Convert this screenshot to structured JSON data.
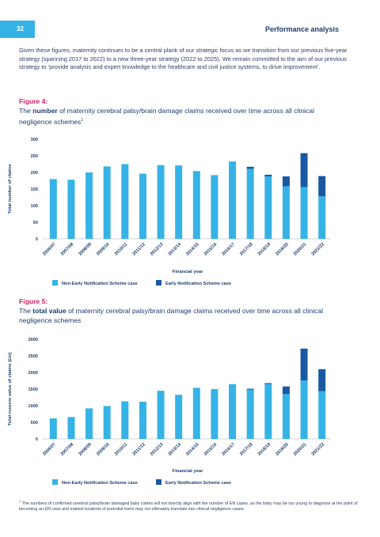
{
  "header": {
    "page_number": "32",
    "section_title": "Performance analysis"
  },
  "intro_text": "Given these figures, maternity continues to be a central plank of our strategic focus as we transition from our previous five-year strategy (spanning 2017 to 2022) to a new three-year strategy (2022 to 2025). We remain committed to the aim of our previous strategy to ‘provide analysis and expert knowledge to the healthcare and civil justice systems, to drive improvement’.",
  "figure4": {
    "label": "Figure 4:",
    "title_pre": "The ",
    "title_bold": "number",
    "title_post": " of maternity cerebral palsy/brain damage claims received over time across all clinical negligence schemes",
    "title_sup": "1"
  },
  "figure5": {
    "label": "Figure 5:",
    "title_pre": "The ",
    "title_bold": "total value",
    "title_post": " of maternity cerebral palsy/brain damage claims received over time across all clinical negligence schemes"
  },
  "footnote": {
    "marker": "1",
    "text": "The numbers of confirmed cerebral palsy/brain damaged baby claims will not directly align with the number of EN cases, as the baby may be too young to diagnose at the point of becoming an EN case and indeed incidents of potential harm may not ultimately translate into clinical negligence cases."
  },
  "colors": {
    "non_en": "#35b3e6",
    "en": "#1b58a3",
    "accent": "#d91d63",
    "navy": "#1d3c6e"
  },
  "chart_data": [
    {
      "type": "bar",
      "stacked": true,
      "categories": [
        "2006/07",
        "2007/08",
        "2008/09",
        "2009/10",
        "2010/11",
        "2011/12",
        "2012/13",
        "2013/14",
        "2014/15",
        "2015/16",
        "2016/17",
        "2017/18",
        "2018/19",
        "2019/20",
        "2020/21",
        "2021/22"
      ],
      "series": [
        {
          "name": "Non-Early Notification Scheme case",
          "values": [
            180,
            178,
            200,
            218,
            225,
            196,
            222,
            221,
            204,
            192,
            233,
            211,
            188,
            158,
            156,
            128
          ]
        },
        {
          "name": "Early Notification Scheme case",
          "values": [
            0,
            0,
            0,
            0,
            0,
            0,
            0,
            0,
            0,
            0,
            0,
            6,
            5,
            30,
            102,
            61
          ]
        }
      ],
      "xlabel": "Financial year",
      "ylabel": "Total number of claims",
      "ylim": [
        0,
        300
      ],
      "yticks": [
        0,
        50,
        100,
        150,
        200,
        250,
        300
      ],
      "grid": false,
      "legend": "bottom"
    },
    {
      "type": "bar",
      "stacked": true,
      "categories": [
        "2006/07",
        "2007/08",
        "2008/09",
        "2009/10",
        "2010/11",
        "2011/12",
        "2012/13",
        "2013/14",
        "2014/15",
        "2015/16",
        "2016/17",
        "2017/18",
        "2018/19",
        "2019/20",
        "2020/21",
        "2021/22"
      ],
      "series": [
        {
          "name": "Non-Early Notification Scheme case",
          "values": [
            620,
            660,
            920,
            990,
            1130,
            1120,
            1450,
            1330,
            1540,
            1500,
            1650,
            1480,
            1650,
            1350,
            1760,
            1440
          ]
        },
        {
          "name": "Early Notification Scheme case",
          "values": [
            0,
            0,
            0,
            0,
            0,
            0,
            0,
            0,
            0,
            0,
            0,
            30,
            30,
            230,
            960,
            660
          ]
        }
      ],
      "xlabel": "Financial year",
      "ylabel": "Total reserve value of claims (£m)",
      "ylim": [
        0,
        3000
      ],
      "yticks": [
        0,
        500,
        1000,
        1500,
        2000,
        2500,
        3000
      ],
      "grid": false,
      "legend": "bottom"
    }
  ]
}
